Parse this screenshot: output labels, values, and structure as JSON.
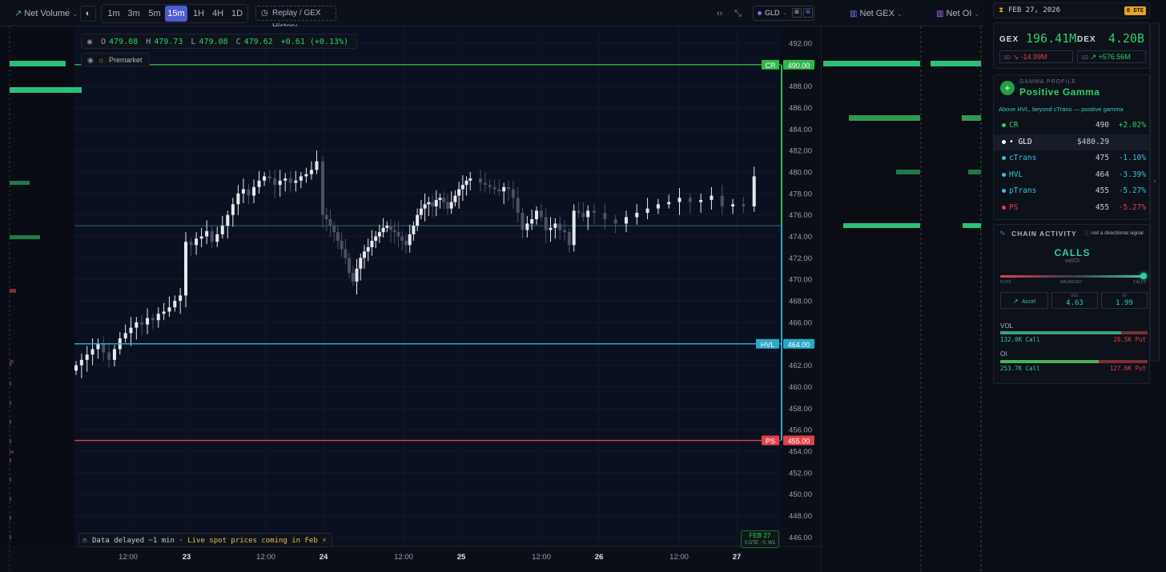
{
  "toolbar": {
    "net_volume": "Net Volume",
    "timeframes": [
      "1m",
      "3m",
      "5m",
      "15m",
      "1H",
      "4H",
      "1D"
    ],
    "active_timeframe": "15m",
    "replay": "Replay / GEX History",
    "ticker": "GLD",
    "net_gex": "Net GEX",
    "net_oi": "Net OI"
  },
  "ohlc": {
    "o": "479.08",
    "h": "479.73",
    "l": "479.08",
    "c": "479.62",
    "change": "+0.61 (+0.13%)"
  },
  "ohlc_labels": {
    "o": "O",
    "h": "H",
    "l": "L",
    "c": "C"
  },
  "premarket": "Premarket",
  "footer": {
    "delayed": "Data delayed ~1 min · ",
    "live": "Live spot prices coming in Feb ⚡"
  },
  "date_badge": {
    "date": "FEB 27",
    "sub": "0 DTE · 0, W1"
  },
  "chart_data": {
    "type": "candlestick",
    "ylim": [
      444.5,
      493.5
    ],
    "y_ticks": [
      "492.00",
      "490.00",
      "488.00",
      "486.00",
      "484.00",
      "482.00",
      "480.00",
      "478.00",
      "476.00",
      "474.00",
      "472.00",
      "470.00",
      "468.00",
      "466.00",
      "464.00",
      "462.00",
      "460.00",
      "458.00",
      "456.00",
      "454.00",
      "452.00",
      "450.00",
      "448.00",
      "446.00"
    ],
    "x_ticks": [
      "12:00",
      "23",
      "12:00",
      "24",
      "12:00",
      "25",
      "12:00",
      "26",
      "12:00",
      "27"
    ],
    "levels": [
      {
        "name": "CR",
        "value": 490.0,
        "label": "490.00",
        "color": "#2fb84a"
      },
      {
        "name": "HVL",
        "value": 464.0,
        "label": "464.00",
        "color": "#2aa8c8"
      },
      {
        "name": "PS",
        "value": 455.0,
        "label": "455.00",
        "color": "#e0414d"
      }
    ],
    "ctrans_line": 475.0,
    "close_series": [
      462,
      462.5,
      463,
      463.5,
      464,
      463.2,
      462.5,
      463.5,
      464.5,
      465,
      465.5,
      466,
      465.8,
      466.4,
      466.2,
      466.8,
      467,
      467.4,
      468,
      468.5,
      473.5,
      473.2,
      473.8,
      474,
      474.5,
      473.5,
      474.2,
      475,
      476,
      477,
      478,
      478.4,
      477.8,
      478.6,
      479.2,
      479.6,
      479.4,
      478.8,
      479.2,
      479.4,
      479.0,
      479.2,
      479.6,
      479.8,
      480.2,
      481,
      476,
      475.6,
      475,
      474.4,
      473.6,
      472.8,
      472,
      470.6,
      469.8,
      471,
      472,
      472.6,
      473,
      473.6,
      474,
      474.4,
      474.8,
      475,
      474.6,
      474.4,
      474,
      473.6,
      473.2,
      474.2,
      475,
      476,
      476.6,
      477,
      477.2,
      476.8,
      477.4,
      477.6,
      477.2,
      476.6,
      477.2,
      477.8,
      478.4,
      478.8,
      479.2,
      479.4,
      479,
      478.8,
      478.6,
      478.4,
      478.2,
      478.6,
      478.4,
      477.6,
      476.2,
      474.6,
      475.2,
      475.6,
      476.4,
      475.8,
      474.6,
      474.8,
      475.2,
      474.6,
      474.4,
      473.2,
      476.4,
      476.2,
      475.8,
      476.4,
      476.2,
      475.6,
      475.2,
      475.8,
      476.2,
      476.6,
      477,
      477.2,
      477.6,
      477.2,
      477.4,
      477.8,
      476.8,
      477,
      476.8,
      479.6
    ]
  },
  "panel": {
    "date": "FEB 27, 2026",
    "dte": "0 DTE",
    "gex_label": "GEX",
    "gex_value": "196.41M",
    "gex_period": "1D",
    "gex_change": "-14.99M",
    "dex_label": "DEX",
    "dex_value": "4.20B",
    "dex_period": "1D",
    "dex_change": "+576.56M",
    "gamma_title": "GAMMA PROFILE",
    "gamma_state": "Positive Gamma",
    "gamma_note": "Above HVL, beyond cTrans — positive gamma",
    "levels": [
      {
        "name": "CR",
        "price": "490",
        "pct": "+2.02%",
        "color": "#2fd06a",
        "pctcolor": "#2fd06a"
      },
      {
        "name": "GLD",
        "price": "$480.29",
        "pct": "",
        "color": "#ffffff",
        "pctcolor": "#ffffff"
      },
      {
        "name": "cTrans",
        "price": "475",
        "pct": "-1.10%",
        "color": "#2ec4d9",
        "pctcolor": "#2ec4d9"
      },
      {
        "name": "HVL",
        "price": "464",
        "pct": "-3.39%",
        "color": "#2ec4d9",
        "pctcolor": "#2ec4d9"
      },
      {
        "name": "pTrans",
        "price": "455",
        "pct": "-5.27%",
        "color": "#2ec4d9",
        "pctcolor": "#2ec4d9"
      },
      {
        "name": "PS",
        "price": "455",
        "pct": "-5.27%",
        "color": "#e0414d",
        "pctcolor": "#e0414d"
      }
    ],
    "chain_title": "CHAIN ACTIVITY",
    "chain_note": "not a directional signal",
    "chain_state": "CALLS",
    "chain_sub": "vol/OI",
    "slider_puts": "PUTS",
    "slider_bal": "BALANCED",
    "slider_calls": "CALLS",
    "accel": "Accel",
    "vol_label": "VOL",
    "vol_value": "4.63",
    "oi_label": "OI",
    "oi_value": "1.99",
    "vol_row_label": "VOL",
    "vol_call": "132.0K Call",
    "vol_put": "28.5K Put",
    "oi_row_label": "OI",
    "oi_call": "253.7K Call",
    "oi_put": "127.6K Put",
    "vol_call_fraction": 0.82,
    "oi_call_fraction": 0.67
  }
}
